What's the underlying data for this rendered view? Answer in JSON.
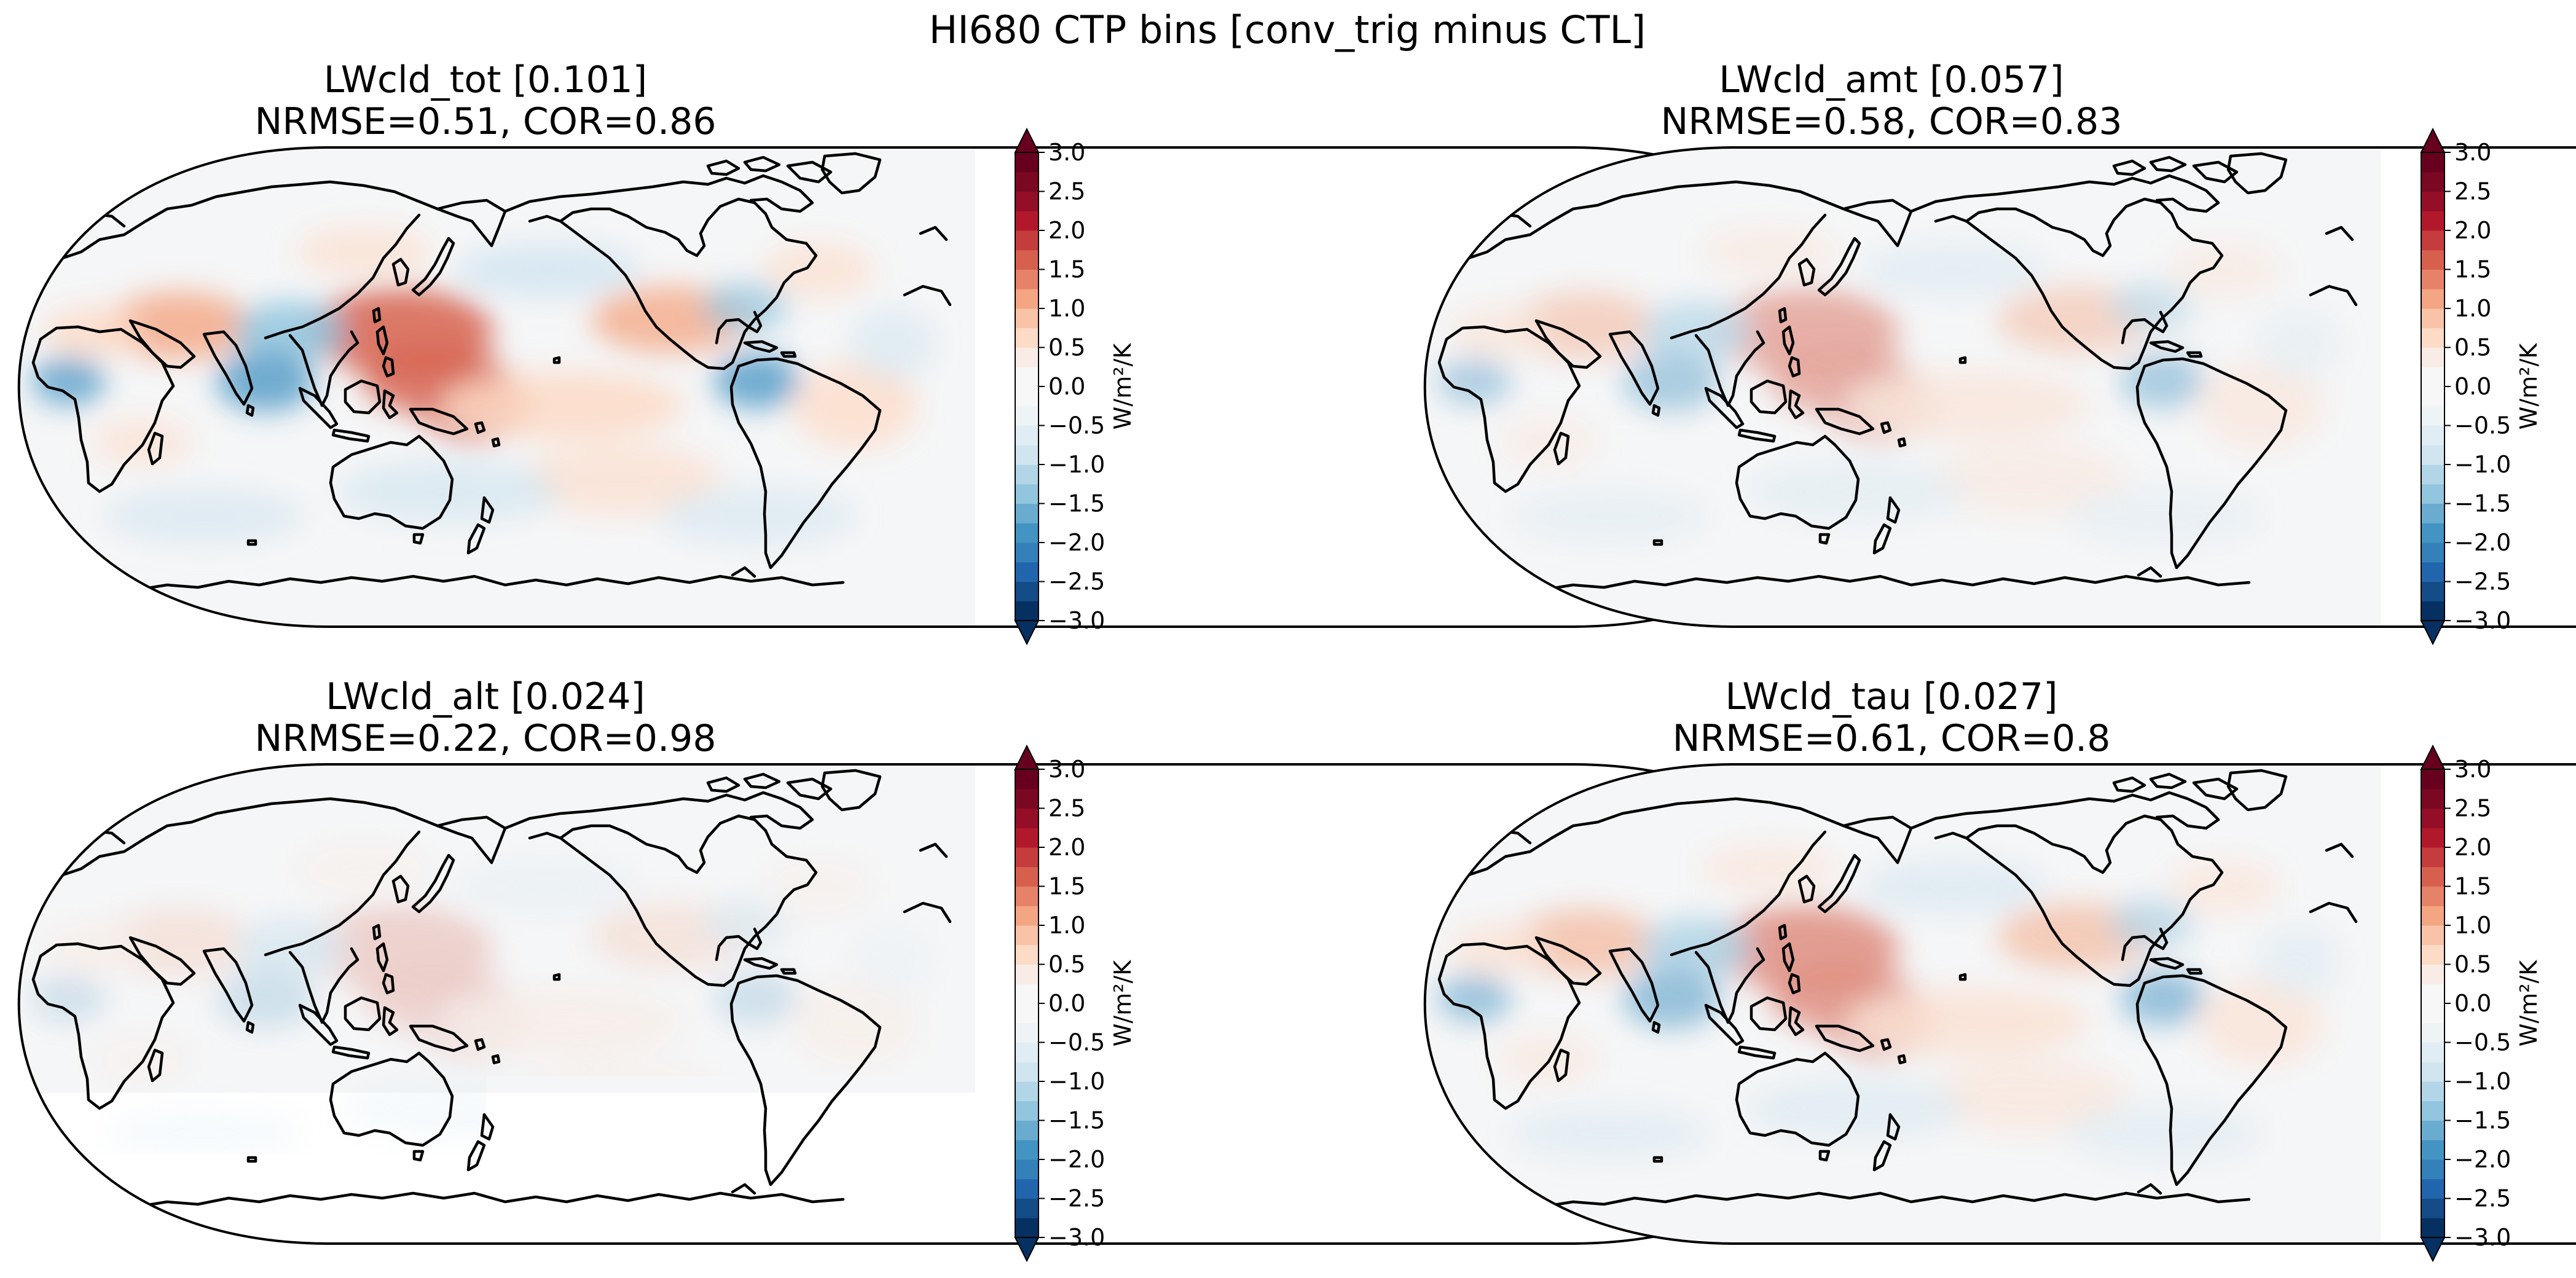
{
  "figure": {
    "title": "HI680 CTP bins [conv_trig minus CTL]",
    "colorbar_label": "W/m²/K",
    "colorbar_ticks": [
      "3.0",
      "2.5",
      "2.0",
      "1.5",
      "1.0",
      "0.5",
      "0.0",
      "−0.5",
      "−1.0",
      "−1.5",
      "−2.0",
      "−2.5",
      "−3.0"
    ],
    "colorbar_levels": 24,
    "colorbar_range": [
      -3.0,
      3.0
    ],
    "colormap": "RdBu_r"
  },
  "panels": [
    {
      "name": "LWcld_tot",
      "title_line1": "LWcld_tot [0.101]",
      "title_line2": "NRMSE=0.51, COR=0.86",
      "global_mean": 0.101,
      "nrmse": 0.51,
      "cor": 0.86,
      "intensity": 1.0,
      "projection": "Robinson, Pacific-centred"
    },
    {
      "name": "LWcld_amt",
      "title_line1": "LWcld_amt [0.057]",
      "title_line2": "NRMSE=0.58, COR=0.83",
      "global_mean": 0.057,
      "nrmse": 0.58,
      "cor": 0.83,
      "intensity": 0.55,
      "projection": "Robinson, Pacific-centred"
    },
    {
      "name": "LWcld_alt",
      "title_line1": "LWcld_alt [0.024]",
      "title_line2": "NRMSE=0.22, COR=0.98",
      "global_mean": 0.024,
      "nrmse": 0.22,
      "cor": 0.98,
      "intensity": 0.28,
      "projection": "Robinson, Pacific-centred"
    },
    {
      "name": "LWcld_tau",
      "title_line1": "LWcld_tau [0.027]",
      "title_line2": "NRMSE=0.61, COR=0.8",
      "global_mean": 0.027,
      "nrmse": 0.61,
      "cor": 0.8,
      "intensity": 0.7,
      "projection": "Robinson, Pacific-centred"
    }
  ]
}
